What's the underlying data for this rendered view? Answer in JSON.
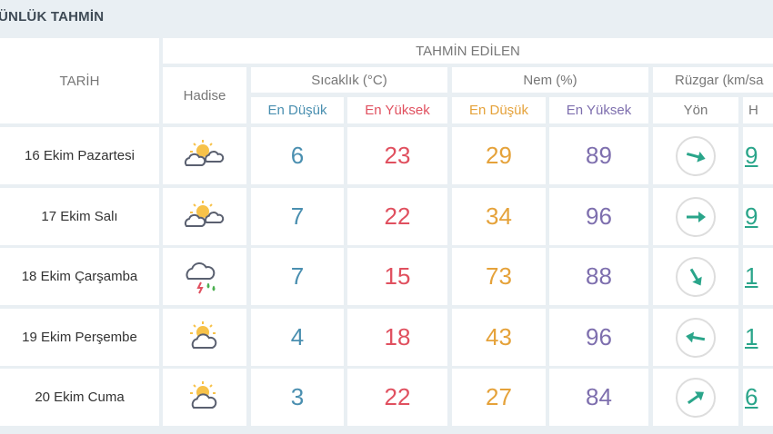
{
  "title": "ÜNLÜK TAHMİN",
  "headers": {
    "date": "TARİH",
    "forecast": "TAHMİN EDİLEN",
    "event": "Hadise",
    "temp": "Sıcaklık (°C)",
    "humidity": "Nem (%)",
    "wind": "Rüzgar (km/sa",
    "low": "En Düşük",
    "high": "En Yüksek",
    "direction": "Yön",
    "speed": "H"
  },
  "colors": {
    "low": "#4a8fb0",
    "high": "#e0505f",
    "hum_low": "#e5a23a",
    "hum_high": "#7e6fae",
    "wind": "#2aa58a"
  },
  "rows": [
    {
      "date": "16 Ekim Pazartesi",
      "icon": "partly-cloudy-icon",
      "temp_low": "6",
      "temp_high": "23",
      "hum_low": "29",
      "hum_high": "89",
      "wind_dir_deg": 15,
      "speed": "9"
    },
    {
      "date": "17 Ekim Salı",
      "icon": "partly-cloudy-icon",
      "temp_low": "7",
      "temp_high": "22",
      "hum_low": "34",
      "hum_high": "96",
      "wind_dir_deg": 0,
      "speed": "9"
    },
    {
      "date": "18 Ekim Çarşamba",
      "icon": "thunderstorm-rain-icon",
      "temp_low": "7",
      "temp_high": "15",
      "hum_low": "73",
      "hum_high": "88",
      "wind_dir_deg": 60,
      "speed": "1"
    },
    {
      "date": "19 Ekim Perşembe",
      "icon": "sun-cloud-icon",
      "temp_low": "4",
      "temp_high": "18",
      "hum_low": "43",
      "hum_high": "96",
      "wind_dir_deg": 190,
      "speed": "1"
    },
    {
      "date": "20 Ekim Cuma",
      "icon": "sun-cloud-icon",
      "temp_low": "3",
      "temp_high": "22",
      "hum_low": "27",
      "hum_high": "84",
      "wind_dir_deg": -35,
      "speed": "6"
    }
  ]
}
